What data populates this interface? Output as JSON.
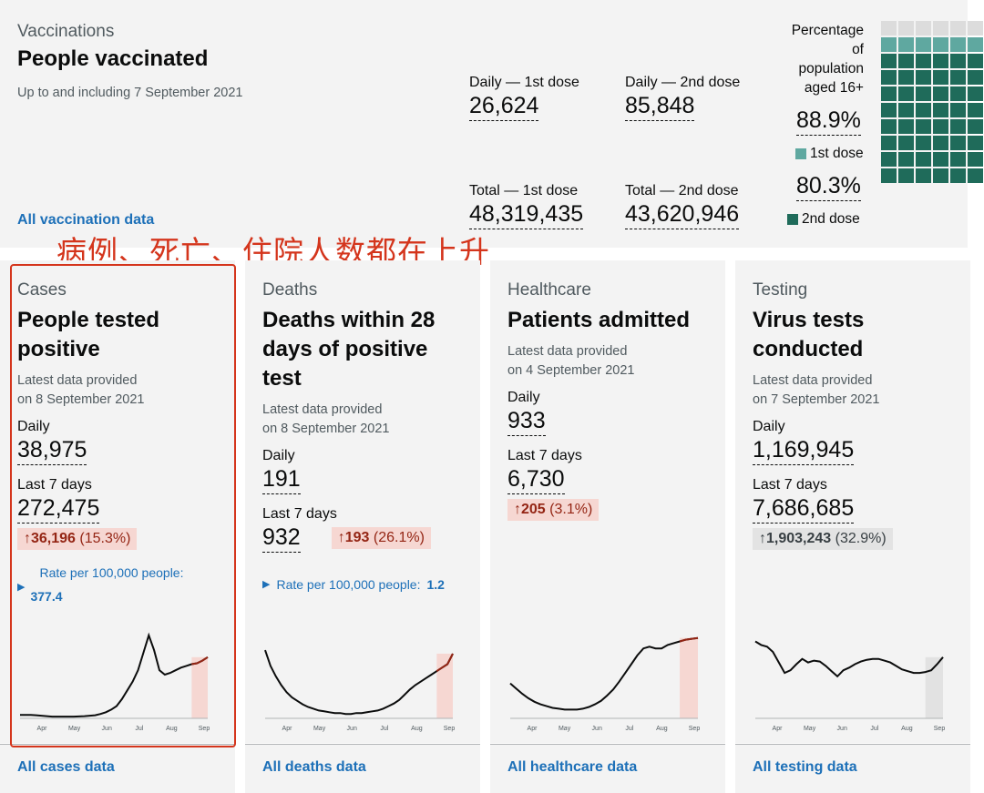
{
  "vaccinations": {
    "caption": "Vaccinations",
    "title": "People vaccinated",
    "subtitle": "Up to and including 7 September 2021",
    "daily1_label": "Daily — 1st dose",
    "daily1_value": "26,624",
    "daily2_label": "Daily — 2nd dose",
    "daily2_value": "85,848",
    "total1_label": "Total — 1st dose",
    "total1_value": "48,319,435",
    "total2_label": "Total — 2nd dose",
    "total2_value": "43,620,946",
    "pct_label_1": "Percentage",
    "pct_label_2": "of",
    "pct_label_3": "population",
    "pct_label_4": "aged 16+",
    "pct1_value": "88.9%",
    "pct1_legend": "1st dose",
    "pct2_value": "80.3%",
    "pct2_legend": "2nd dose",
    "first_dose_pct": 88.9,
    "second_dose_pct": 80.3,
    "color_first": "#5fa8a0",
    "color_second": "#1f6b5a",
    "link": "All vaccination data"
  },
  "annotation": "病例、死亡、住院人数都在上升",
  "cards": [
    {
      "caption": "Cases",
      "title_1": "People tested",
      "title_2": "positive",
      "title_3": "",
      "provided_1": "Latest data provided",
      "provided_2": "on 8 September 2021",
      "daily_label": "Daily",
      "daily_value": "38,975",
      "week_label": "Last 7 days",
      "week_value": "272,475",
      "change_value": "36,196",
      "change_pct": "(15.3%)",
      "rate_label": "Rate per 100,000 people:",
      "rate_value": "377.4",
      "link": "All cases data"
    },
    {
      "caption": "Deaths",
      "title_1": "Deaths within 28",
      "title_2": "days of positive",
      "title_3": "test",
      "provided_1": "Latest data provided",
      "provided_2": "on 8 September 2021",
      "daily_label": "Daily",
      "daily_value": "191",
      "week_label": "Last 7 days",
      "week_value": "932",
      "change_value": "193",
      "change_pct": "(26.1%)",
      "rate_label": "Rate per 100,000 people:",
      "rate_value": "1.2",
      "link": "All deaths data"
    },
    {
      "caption": "Healthcare",
      "title_1": "Patients admitted",
      "title_2": "",
      "title_3": "",
      "provided_1": "Latest data provided",
      "provided_2": "on 4 September 2021",
      "daily_label": "Daily",
      "daily_value": "933",
      "week_label": "Last 7 days",
      "week_value": "6,730",
      "change_value": "205",
      "change_pct": "(3.1%)",
      "link": "All healthcare data"
    },
    {
      "caption": "Testing",
      "title_1": "Virus tests",
      "title_2": "conducted",
      "title_3": "",
      "provided_1": "Latest data provided",
      "provided_2": "on 7 September 2021",
      "daily_label": "Daily",
      "daily_value": "1,169,945",
      "week_label": "Last 7 days",
      "week_value": "7,686,685",
      "change_value": "1,903,243",
      "change_pct": "(32.9%)",
      "link": "All testing data"
    }
  ],
  "chart_data": [
    {
      "type": "line",
      "name": "cases",
      "x_ticks": [
        "Apr",
        "May",
        "Jun",
        "Jul",
        "Aug",
        "Sep"
      ],
      "values": [
        4,
        4,
        4,
        3.5,
        3,
        2.5,
        2,
        2,
        2,
        2,
        2,
        2.2,
        2.5,
        3,
        3.5,
        5,
        7,
        10,
        14,
        22,
        32,
        42,
        55,
        75,
        95,
        78,
        55,
        50,
        52,
        55,
        58,
        60,
        62,
        63,
        66,
        70
      ],
      "highlight_last": 3,
      "line_color": "#0b0c0c",
      "highlight_color": "#f6d7d2"
    },
    {
      "type": "line",
      "name": "deaths",
      "x_ticks": [
        "Apr",
        "May",
        "Jun",
        "Jul",
        "Aug",
        "Sep"
      ],
      "values": [
        78,
        60,
        48,
        38,
        30,
        24,
        20,
        16,
        13,
        11,
        9,
        8,
        7,
        6,
        6,
        5,
        5,
        6,
        6,
        7,
        8,
        9,
        11,
        14,
        17,
        21,
        27,
        33,
        38,
        42,
        46,
        50,
        54,
        58,
        62,
        74
      ],
      "highlight_last": 3,
      "line_color": "#0b0c0c",
      "highlight_color": "#f6d7d2"
    },
    {
      "type": "line",
      "name": "healthcare",
      "x_ticks": [
        "Apr",
        "May",
        "Jun",
        "Jul",
        "Aug",
        "Sep"
      ],
      "values": [
        40,
        34,
        28,
        23,
        19,
        16,
        14,
        12,
        11,
        10,
        10,
        10,
        11,
        13,
        16,
        20,
        26,
        33,
        42,
        52,
        62,
        72,
        80,
        82,
        80,
        80,
        84,
        86,
        88,
        90,
        91,
        92
      ],
      "highlight_last": 3,
      "line_color": "#0b0c0c",
      "highlight_color": "#f6d7d2"
    },
    {
      "type": "line",
      "name": "testing",
      "x_ticks": [
        "Apr",
        "May",
        "Jun",
        "Jul",
        "Aug",
        "Sep"
      ],
      "values": [
        88,
        84,
        82,
        76,
        64,
        52,
        55,
        62,
        68,
        64,
        66,
        65,
        60,
        54,
        48,
        55,
        58,
        62,
        65,
        67,
        68,
        68,
        66,
        64,
        60,
        56,
        54,
        52,
        52,
        53,
        55,
        62,
        70
      ],
      "highlight_last": 3,
      "line_color": "#0b0c0c",
      "highlight_color": "#e2e2e2"
    }
  ]
}
